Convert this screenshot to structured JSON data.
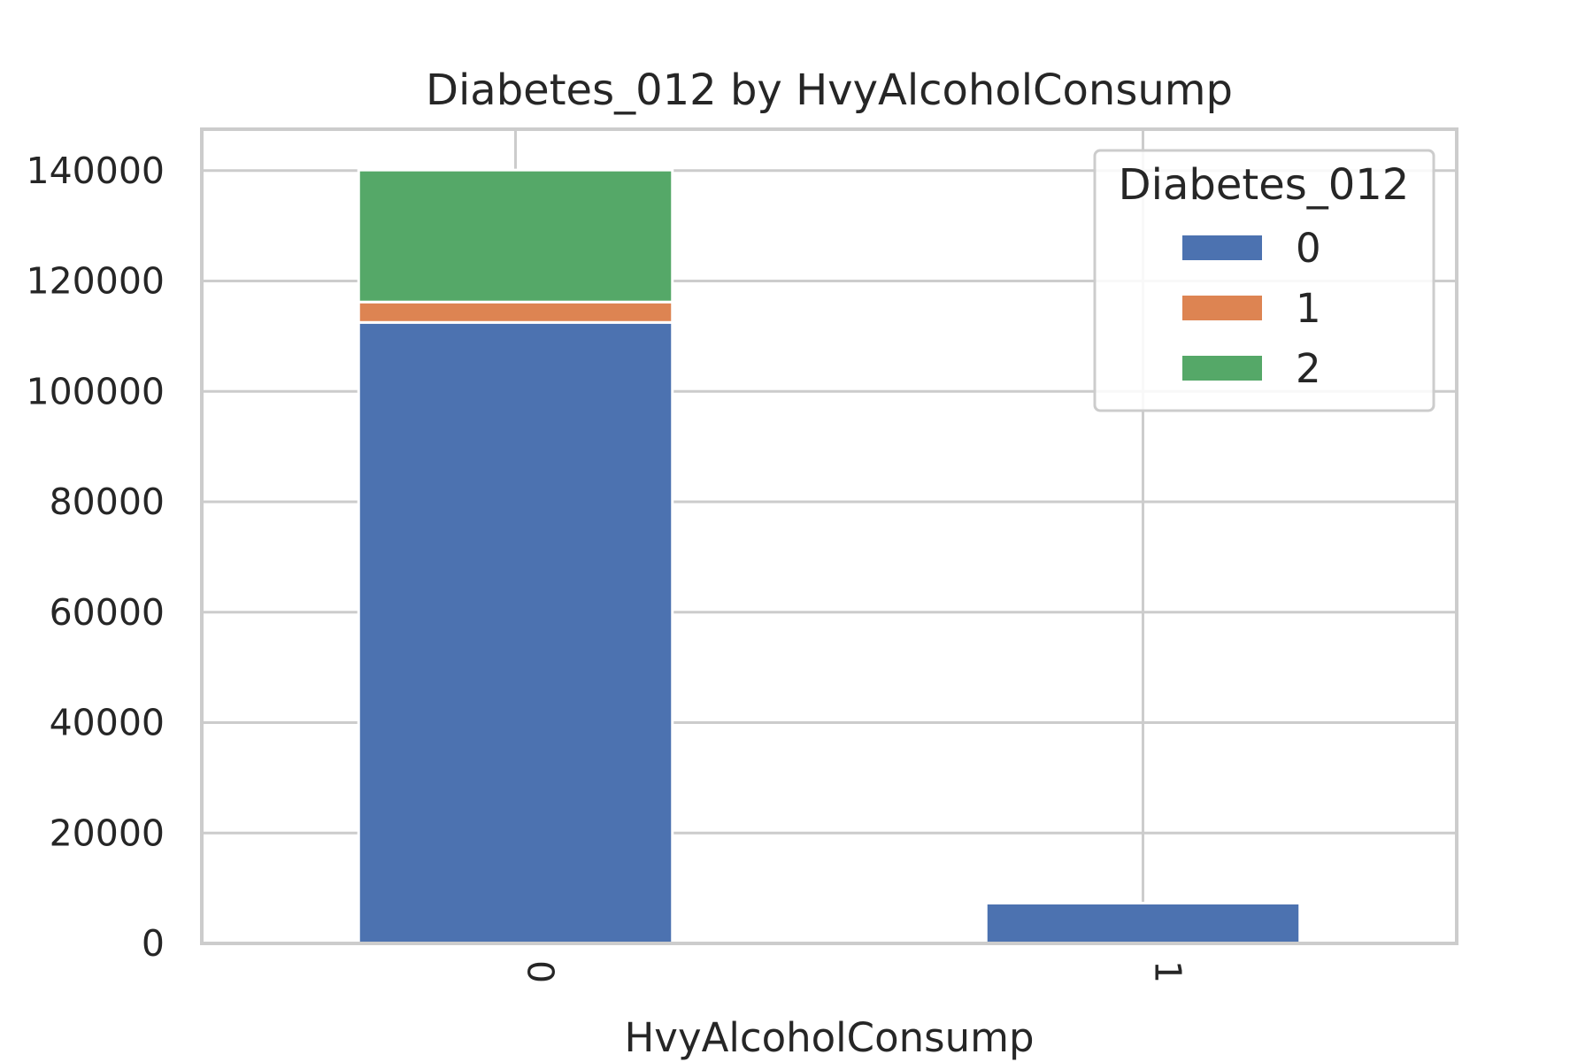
{
  "chart_data": {
    "type": "bar",
    "stacked": true,
    "title": "Diabetes_012 by HvyAlcoholConsump",
    "xlabel": "HvyAlcoholConsump",
    "ylabel": "",
    "categories": [
      "0",
      "1"
    ],
    "series": [
      {
        "name": "0",
        "color": "#4c72b0",
        "values": [
          112500,
          7300
        ]
      },
      {
        "name": "1",
        "color": "#dd8452",
        "values": [
          3700,
          0
        ]
      },
      {
        "name": "2",
        "color": "#55a868",
        "values": [
          23900,
          0
        ]
      }
    ],
    "ylim": [
      0,
      147500
    ],
    "yticks": [
      "0",
      "20000",
      "40000",
      "60000",
      "80000",
      "100000",
      "120000",
      "140000"
    ],
    "ytick_values": [
      0,
      20000,
      40000,
      60000,
      80000,
      100000,
      120000,
      140000
    ],
    "grid": true,
    "legend": {
      "title": "Diabetes_012",
      "position": "top-right"
    }
  }
}
